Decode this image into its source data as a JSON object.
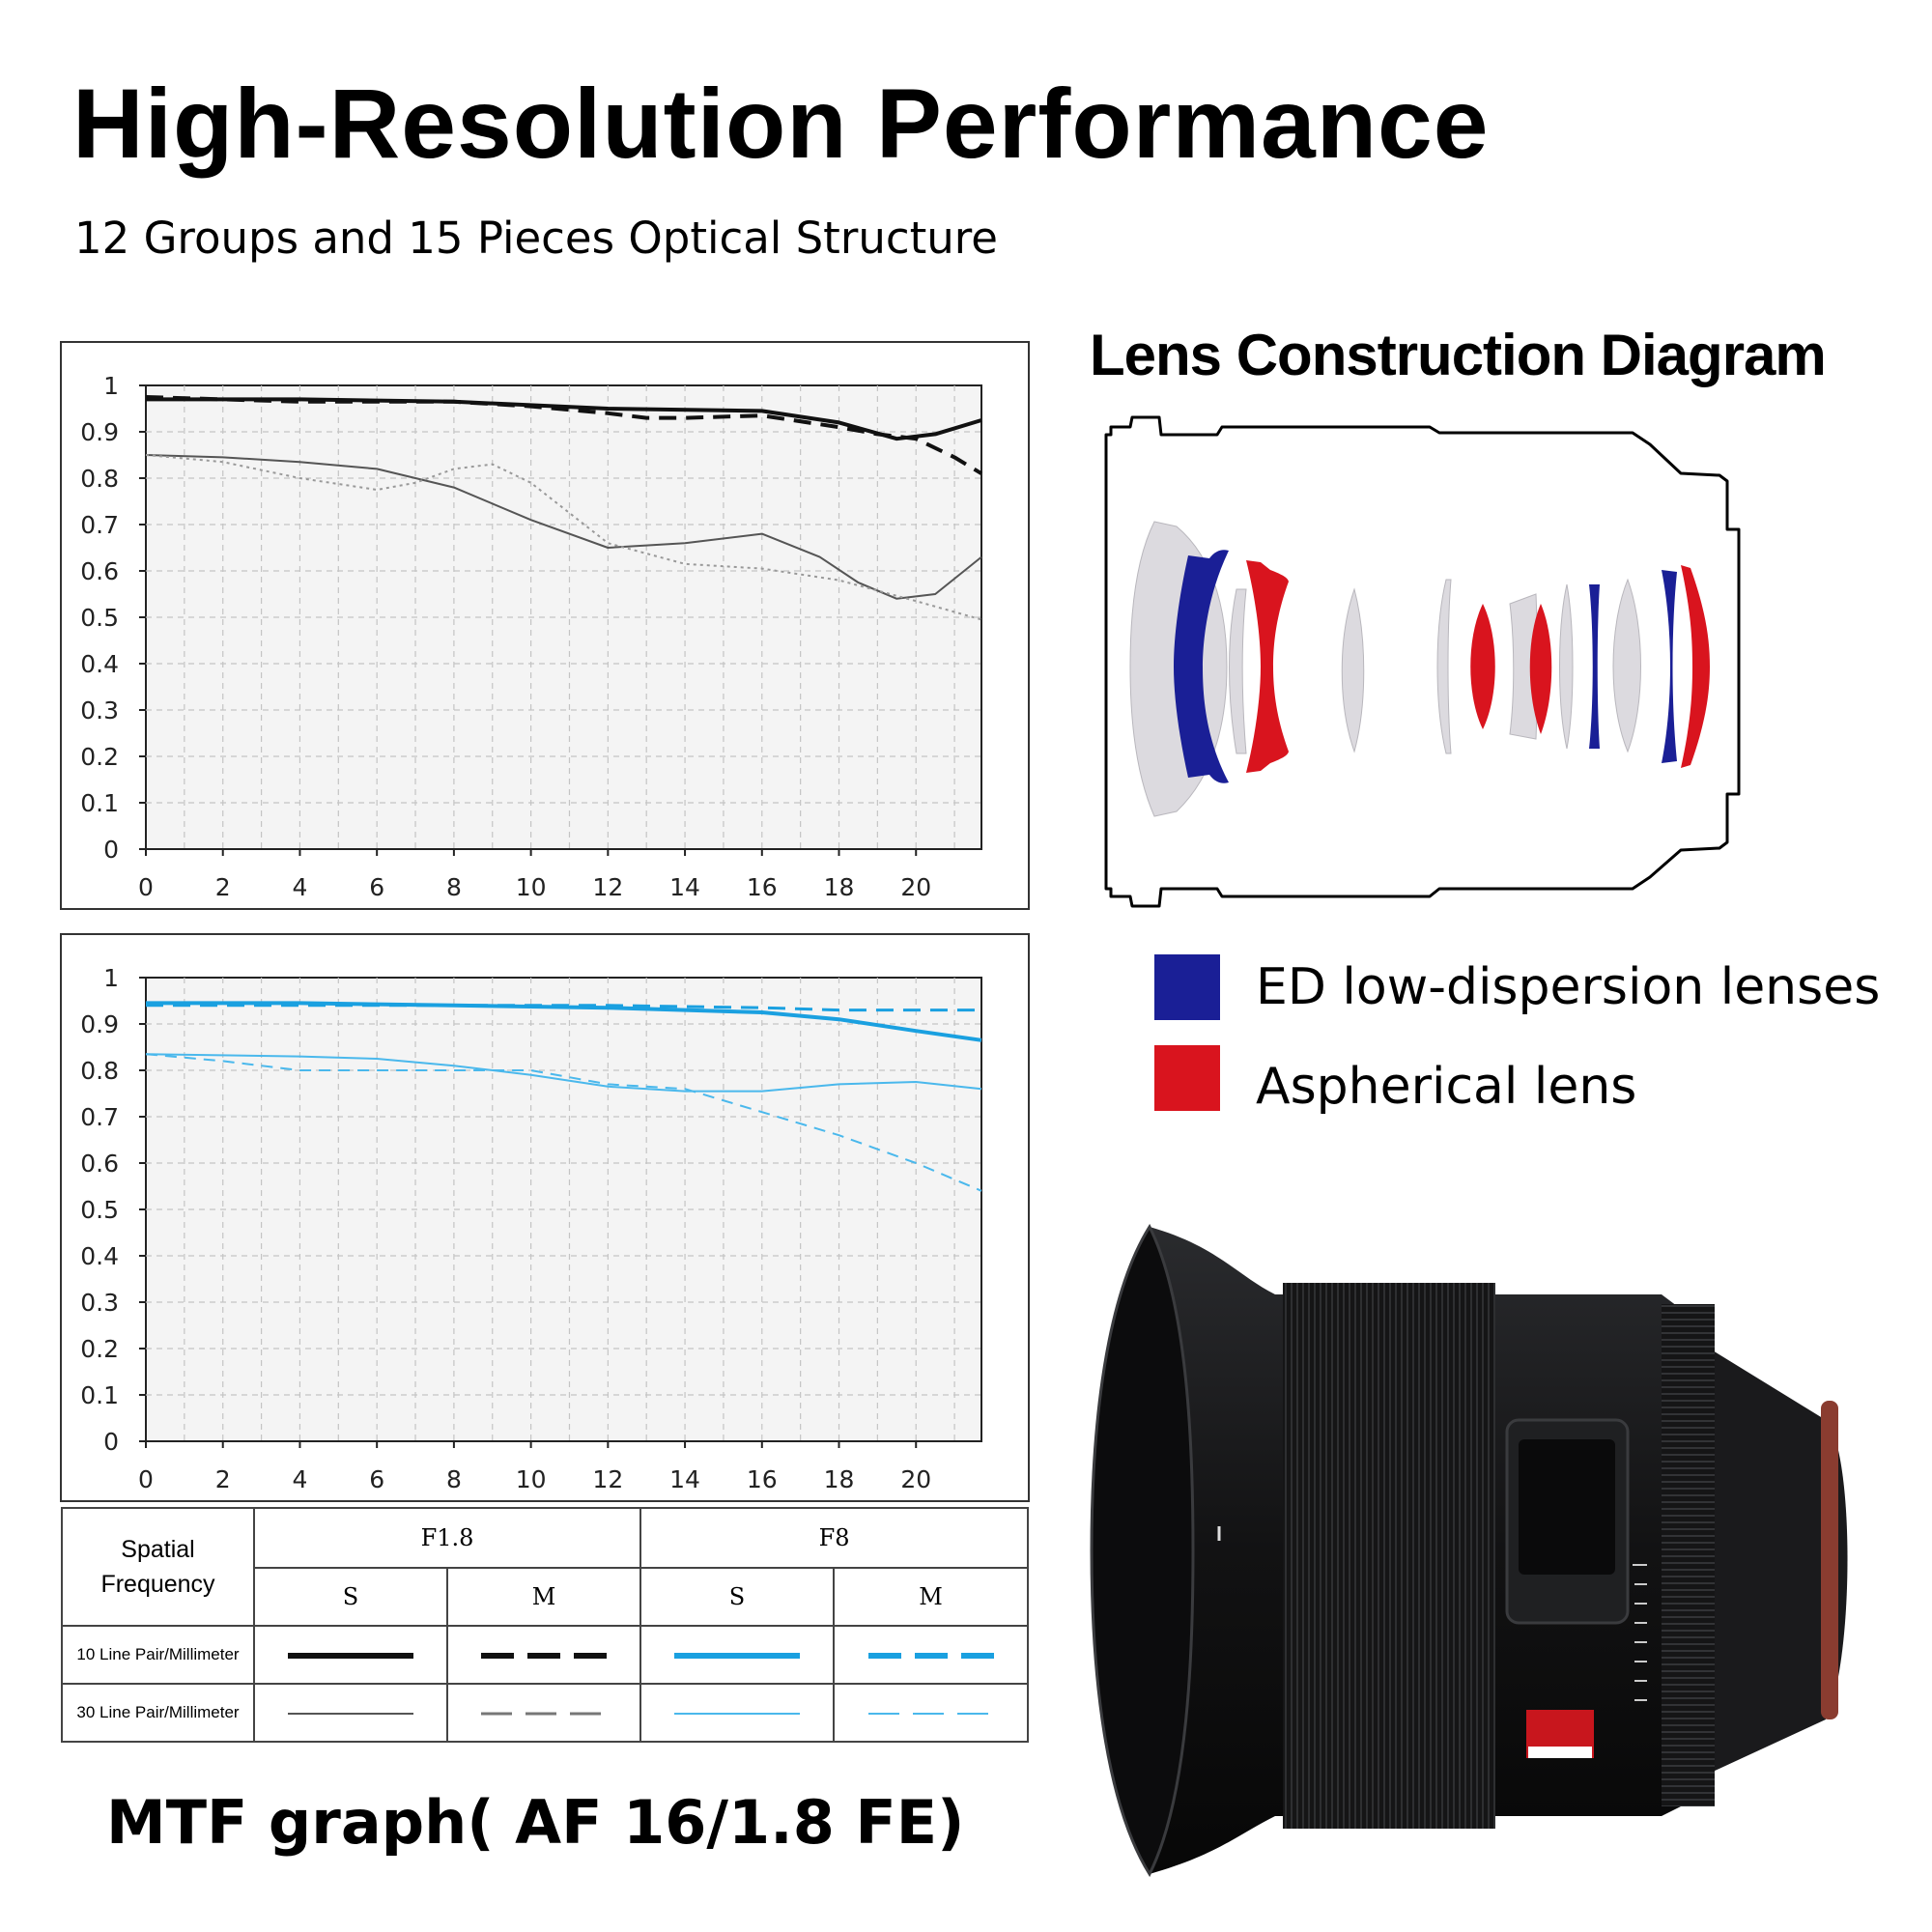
{
  "header": {
    "title": "High-Resolution Performance",
    "subtitle": "12 Groups and 15 Pieces Optical Structure"
  },
  "lens_diagram": {
    "title": "Lens Construction Diagram",
    "legend": [
      {
        "label": "ED low-dispersion lenses",
        "color": "#1a1f96"
      },
      {
        "label": "Aspherical lens",
        "color": "#d9141e"
      }
    ]
  },
  "mtf_caption": "MTF graph( AF 16/1.8 FE)",
  "key_table": {
    "corner": [
      "Spatial",
      "Frequency"
    ],
    "apertures": [
      "F1.8",
      "F8"
    ],
    "sm": [
      "S",
      "M",
      "S",
      "M"
    ],
    "rows": [
      "10 Line Pair/Millimeter",
      "30 Line Pair/Millimeter"
    ]
  },
  "chart_data": [
    {
      "type": "line",
      "xlim": [
        0,
        21.7
      ],
      "ylim": [
        0,
        1
      ],
      "xticks": [
        0,
        2,
        4,
        6,
        8,
        10,
        12,
        14,
        16,
        18,
        20
      ],
      "yticks": [
        "0",
        "0.1",
        "0.2",
        "0.3",
        "0.4",
        "0.5",
        "0.6",
        "0.7",
        "0.8",
        "0.9",
        "1"
      ],
      "grid": true,
      "series": [
        {
          "color": "#111111",
          "dash": "solid",
          "width": 4,
          "points": [
            [
              0,
              0.97
            ],
            [
              4,
              0.97
            ],
            [
              8,
              0.965
            ],
            [
              12,
              0.95
            ],
            [
              16,
              0.945
            ],
            [
              18,
              0.92
            ],
            [
              19.5,
              0.885
            ],
            [
              20.5,
              0.895
            ],
            [
              21.7,
              0.925
            ]
          ]
        },
        {
          "color": "#111111",
          "dash": "dashed",
          "width": 4,
          "points": [
            [
              0,
              0.975
            ],
            [
              4,
              0.965
            ],
            [
              8,
              0.965
            ],
            [
              10,
              0.955
            ],
            [
              12,
              0.94
            ],
            [
              13,
              0.93
            ],
            [
              14,
              0.93
            ],
            [
              16,
              0.935
            ],
            [
              18,
              0.91
            ],
            [
              19,
              0.895
            ],
            [
              20,
              0.885
            ],
            [
              21,
              0.845
            ],
            [
              21.7,
              0.81
            ]
          ]
        },
        {
          "color": "#555555",
          "dash": "solid",
          "width": 2,
          "points": [
            [
              0,
              0.85
            ],
            [
              2,
              0.845
            ],
            [
              4,
              0.835
            ],
            [
              6,
              0.82
            ],
            [
              8,
              0.78
            ],
            [
              10,
              0.71
            ],
            [
              12,
              0.65
            ],
            [
              14,
              0.66
            ],
            [
              16,
              0.68
            ],
            [
              17.5,
              0.63
            ],
            [
              18.5,
              0.575
            ],
            [
              19.5,
              0.54
            ],
            [
              20.5,
              0.55
            ],
            [
              21.7,
              0.63
            ]
          ]
        },
        {
          "color": "#999999",
          "dash": "dotted",
          "width": 2,
          "points": [
            [
              0,
              0.85
            ],
            [
              2,
              0.835
            ],
            [
              4,
              0.8
            ],
            [
              6,
              0.775
            ],
            [
              7,
              0.79
            ],
            [
              8,
              0.82
            ],
            [
              9,
              0.83
            ],
            [
              10,
              0.79
            ],
            [
              12,
              0.66
            ],
            [
              14,
              0.615
            ],
            [
              16,
              0.605
            ],
            [
              18,
              0.58
            ],
            [
              20,
              0.535
            ],
            [
              21.7,
              0.495
            ]
          ]
        }
      ]
    },
    {
      "type": "line",
      "xlim": [
        0,
        21.7
      ],
      "ylim": [
        0,
        1
      ],
      "xticks": [
        0,
        2,
        4,
        6,
        8,
        10,
        12,
        14,
        16,
        18,
        20
      ],
      "yticks": [
        "0",
        "0.1",
        "0.2",
        "0.3",
        "0.4",
        "0.5",
        "0.6",
        "0.7",
        "0.8",
        "0.9",
        "1"
      ],
      "grid": true,
      "series": [
        {
          "color": "#1aa0e0",
          "dash": "solid",
          "width": 4,
          "points": [
            [
              0,
              0.945
            ],
            [
              4,
              0.945
            ],
            [
              8,
              0.94
            ],
            [
              12,
              0.935
            ],
            [
              16,
              0.925
            ],
            [
              18,
              0.91
            ],
            [
              20,
              0.885
            ],
            [
              21.7,
              0.865
            ]
          ]
        },
        {
          "color": "#1aa0e0",
          "dash": "dashed",
          "width": 3,
          "points": [
            [
              0,
              0.94
            ],
            [
              4,
              0.94
            ],
            [
              8,
              0.94
            ],
            [
              12,
              0.94
            ],
            [
              16,
              0.935
            ],
            [
              18,
              0.93
            ],
            [
              20,
              0.93
            ],
            [
              21.7,
              0.93
            ]
          ]
        },
        {
          "color": "#4ab8ec",
          "dash": "solid",
          "width": 2,
          "points": [
            [
              0,
              0.835
            ],
            [
              4,
              0.83
            ],
            [
              6,
              0.825
            ],
            [
              8,
              0.81
            ],
            [
              10,
              0.79
            ],
            [
              12,
              0.765
            ],
            [
              14,
              0.755
            ],
            [
              16,
              0.755
            ],
            [
              18,
              0.77
            ],
            [
              20,
              0.775
            ],
            [
              21.7,
              0.76
            ]
          ]
        },
        {
          "color": "#4ab8ec",
          "dash": "dashed",
          "width": 2,
          "points": [
            [
              0,
              0.835
            ],
            [
              2,
              0.82
            ],
            [
              4,
              0.8
            ],
            [
              6,
              0.8
            ],
            [
              8,
              0.8
            ],
            [
              10,
              0.8
            ],
            [
              12,
              0.77
            ],
            [
              14,
              0.76
            ],
            [
              16,
              0.71
            ],
            [
              18,
              0.66
            ],
            [
              20,
              0.6
            ],
            [
              21.7,
              0.54
            ]
          ]
        }
      ]
    }
  ]
}
